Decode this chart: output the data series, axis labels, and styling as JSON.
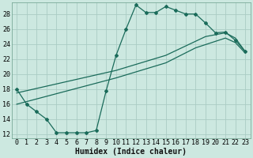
{
  "xlabel": "Humidex (Indice chaleur)",
  "bg_color": "#cce8e0",
  "grid_color": "#aaccc4",
  "line_color": "#1a6b5a",
  "xlim": [
    -0.5,
    23.5
  ],
  "ylim": [
    11.5,
    29.5
  ],
  "xticks": [
    0,
    1,
    2,
    3,
    4,
    5,
    6,
    7,
    8,
    9,
    10,
    11,
    12,
    13,
    14,
    15,
    16,
    17,
    18,
    19,
    20,
    21,
    22,
    23
  ],
  "yticks": [
    12,
    14,
    16,
    18,
    20,
    22,
    24,
    26,
    28
  ],
  "curve1_x": [
    0,
    1,
    2,
    3,
    4,
    5,
    6,
    7,
    8,
    9,
    10,
    11,
    12,
    13,
    14,
    15,
    16,
    17,
    18,
    19,
    20,
    21,
    22,
    23
  ],
  "curve1_y": [
    18,
    16,
    15,
    14,
    12.2,
    12.2,
    12.2,
    12.2,
    12.5,
    17.8,
    22.5,
    26.0,
    29.2,
    28.2,
    28.2,
    29.0,
    28.5,
    28.0,
    28.0,
    26.8,
    25.5,
    25.6,
    24.5,
    23.0
  ],
  "curve2_x": [
    0,
    10,
    15,
    19,
    21,
    22,
    23
  ],
  "curve2_y": [
    17.5,
    20.5,
    22.5,
    25.0,
    25.5,
    24.8,
    23.0
  ],
  "curve3_x": [
    0,
    10,
    15,
    18,
    21,
    22,
    23
  ],
  "curve3_y": [
    16.0,
    19.5,
    21.5,
    23.5,
    24.8,
    24.2,
    22.8
  ],
  "tick_fontsize": 6,
  "xlabel_fontsize": 7
}
